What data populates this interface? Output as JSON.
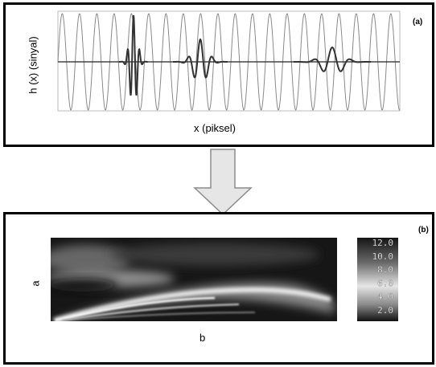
{
  "panel_a": {
    "tag": "(a)",
    "ylabel": "h (x) (sinyal)",
    "xlabel": "x (piksel)"
  },
  "panel_b": {
    "tag": "(b)",
    "ylabel": "a",
    "xlabel": "b",
    "colorbar_ticks": [
      "12.0",
      "10.0",
      "8.0",
      "6.0",
      "4.0",
      "2.0"
    ]
  },
  "colors": {
    "border": "#000000",
    "sine": "#8a8a8a",
    "wavelet": "#333333",
    "arrow_fill": "#e6e6e6",
    "arrow_stroke": "#8c8c8c"
  }
}
